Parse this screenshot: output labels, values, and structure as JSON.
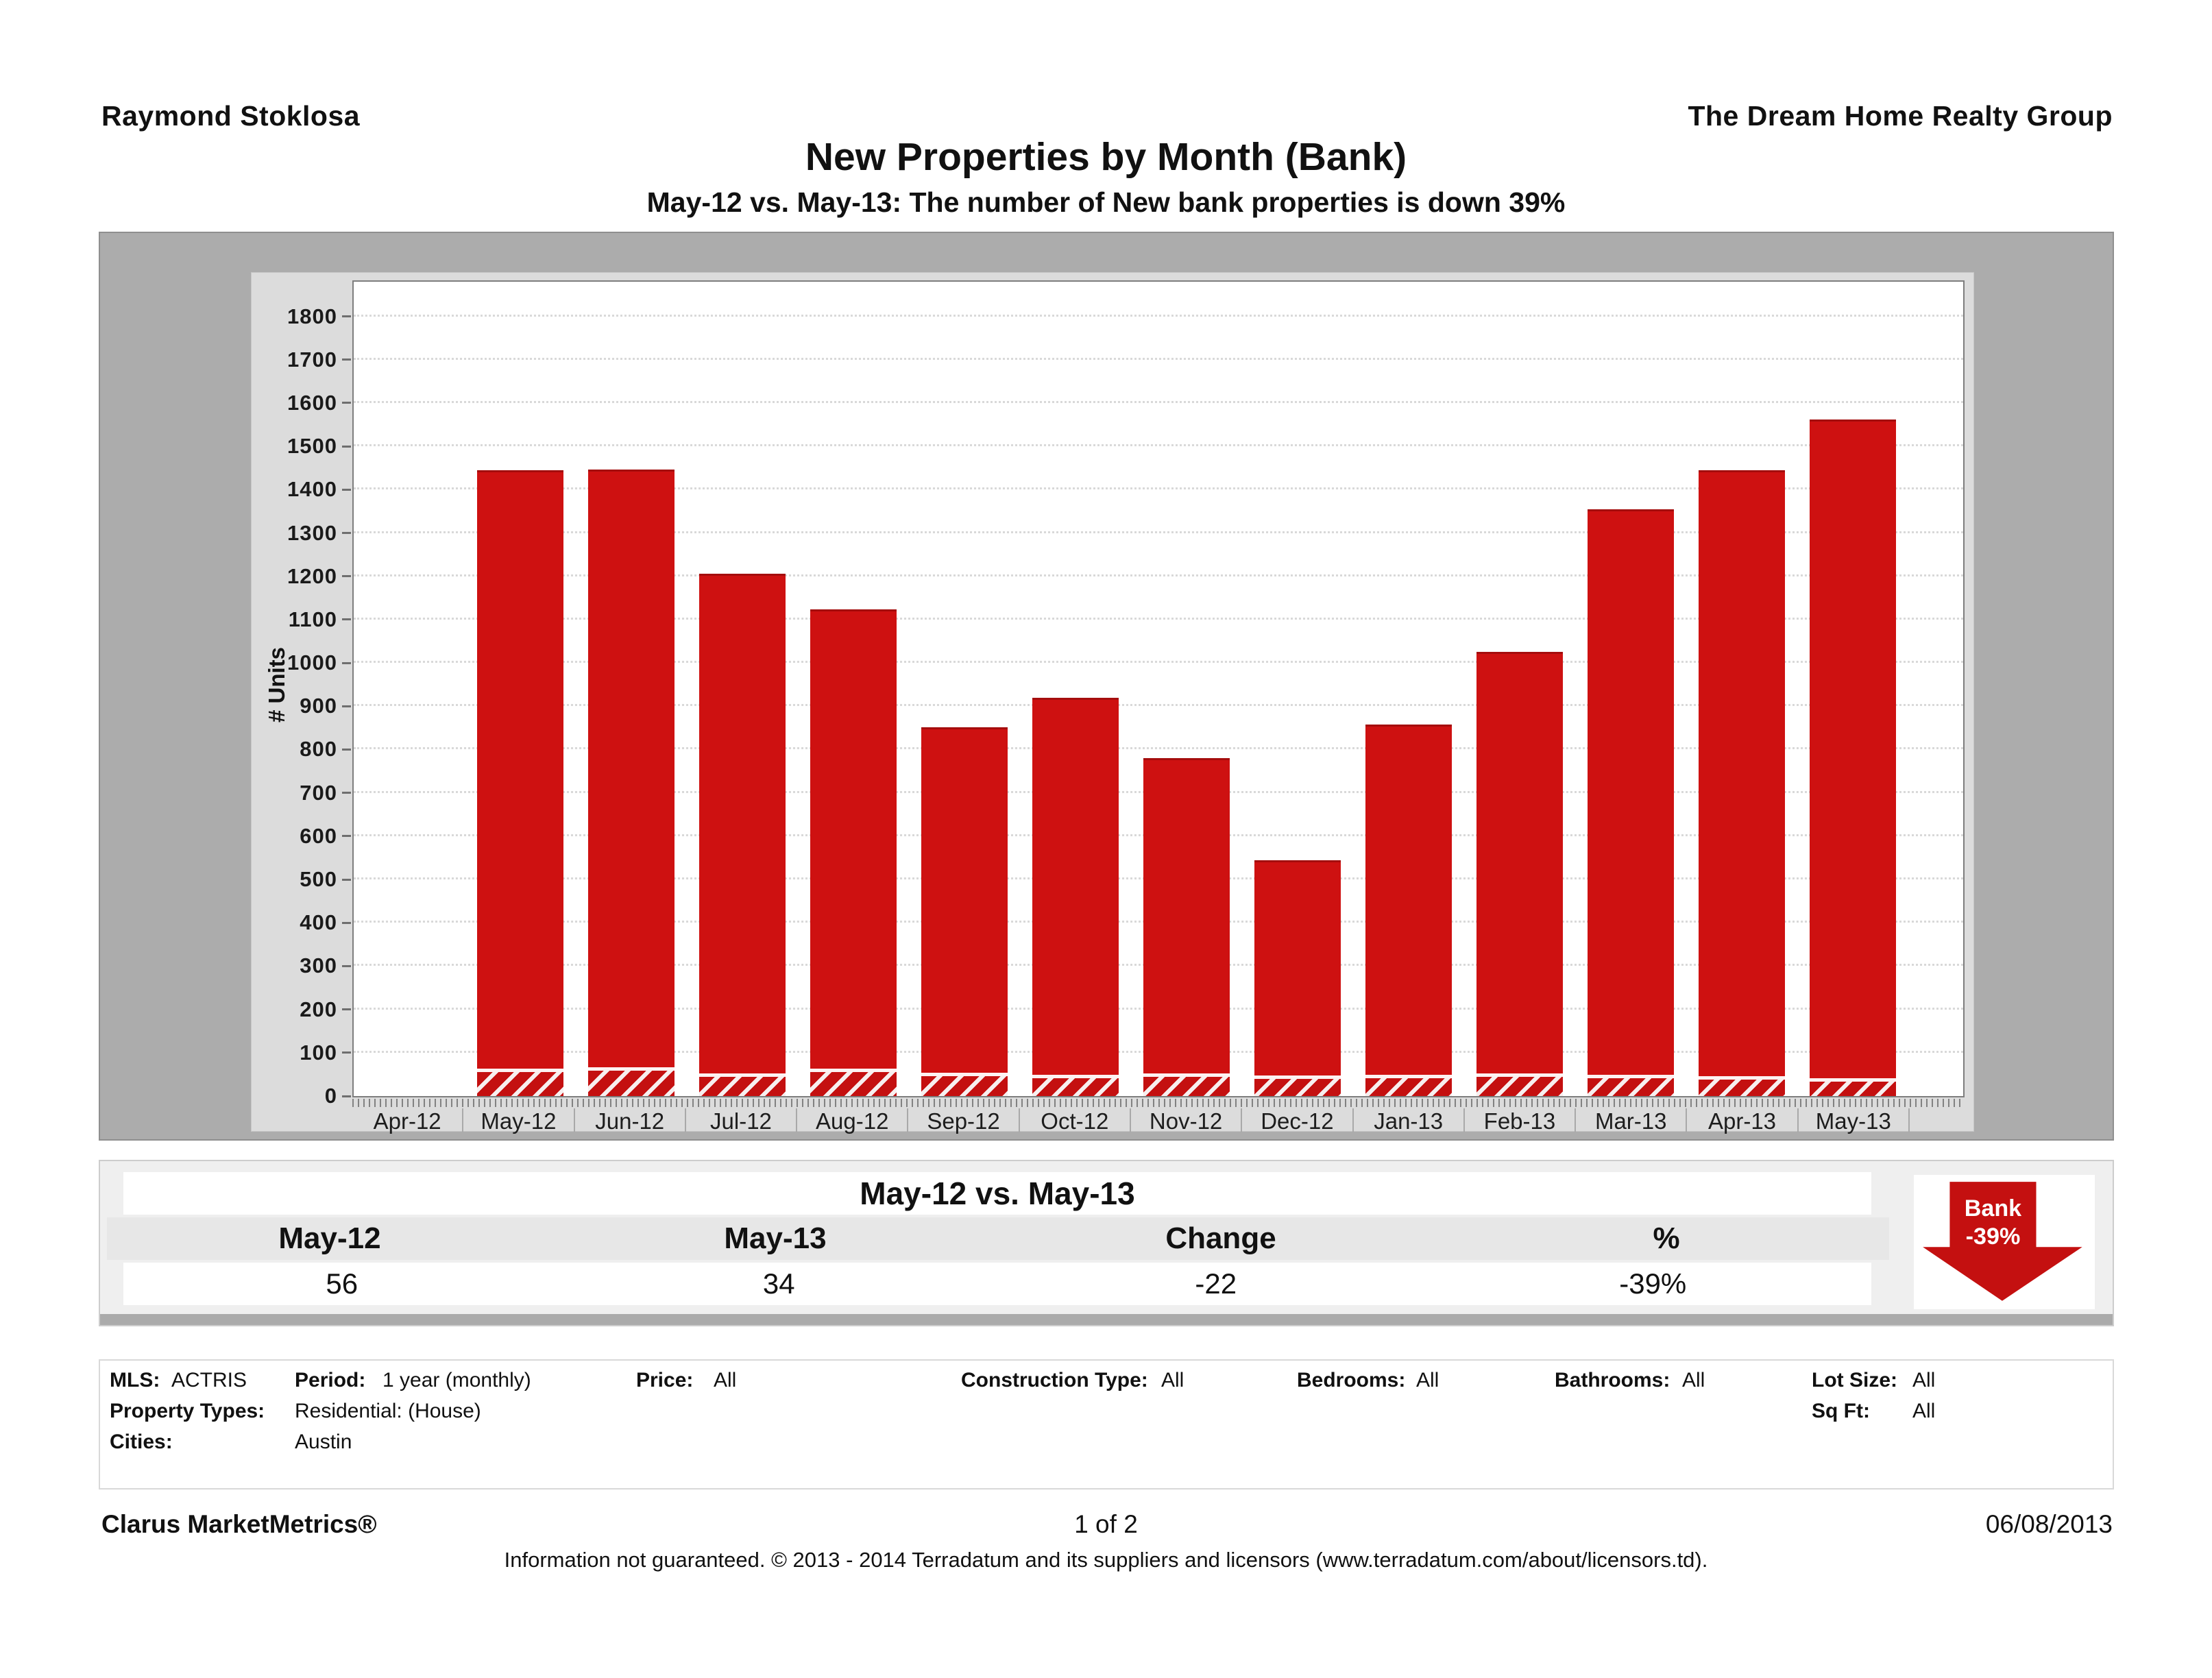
{
  "header": {
    "agent": "Raymond Stoklosa",
    "company": "The Dream Home Realty Group"
  },
  "title": "New Properties by Month (Bank)",
  "subtitle": "May-12 vs. May-13: The number of New bank properties is down 39%",
  "chart_data": {
    "type": "bar",
    "title": "New Properties by Month (Bank)",
    "xlabel": "",
    "ylabel": "# Units",
    "ylim": [
      0,
      1880
    ],
    "ytick_step": 100,
    "ytick_max": 1800,
    "grid": "horizontal-dotted",
    "legend_position": "none",
    "bar_color": "#ce1111",
    "hatch_description": "bottom segment of each bar is red with white diagonal stripes (bank share)",
    "categories": [
      "Apr-12",
      "May-12",
      "Jun-12",
      "Jul-12",
      "Aug-12",
      "Sep-12",
      "Oct-12",
      "Nov-12",
      "Dec-12",
      "Jan-13",
      "Feb-13",
      "Mar-13",
      "Apr-13",
      "May-13"
    ],
    "series": [
      {
        "name": "New properties (total bar height)",
        "values": [
          null,
          1445,
          1447,
          1206,
          1123,
          852,
          920,
          780,
          544,
          858,
          1026,
          1355,
          1445,
          1562
        ]
      },
      {
        "name": "New bank properties (hatched bottom segment)",
        "values": [
          null,
          56,
          58,
          45,
          55,
          46,
          42,
          44,
          40,
          42,
          44,
          42,
          38,
          34
        ]
      }
    ]
  },
  "comparison": {
    "title": "May-12 vs. May-13",
    "columns": [
      "May-12",
      "May-13",
      "Change",
      "%"
    ],
    "values": [
      "56",
      "34",
      "-22",
      "-39%"
    ]
  },
  "badge": {
    "label": "Bank",
    "value": "-39%",
    "color": "#c41010"
  },
  "filters": {
    "mls_label": "MLS:",
    "mls_value": "ACTRIS",
    "period_label": "Period:",
    "period_value": "1 year (monthly)",
    "price_label": "Price:",
    "price_value": "All",
    "construction_label": "Construction Type:",
    "construction_value": "All",
    "bedrooms_label": "Bedrooms:",
    "bedrooms_value": "All",
    "bathrooms_label": "Bathrooms:",
    "bathrooms_value": "All",
    "lot_label": "Lot Size:",
    "lot_value": "All",
    "property_types_label": "Property Types:",
    "property_types_value": "Residential: (House)",
    "sqft_label": "Sq Ft:",
    "sqft_value": "All",
    "cities_label": "Cities:",
    "cities_value": "Austin"
  },
  "footer": {
    "brand": "Clarus MarketMetrics®",
    "page": "1 of 2",
    "date": "06/08/2013",
    "disclaimer": "Information not guaranteed.  © 2013 - 2014 Terradatum and its suppliers and licensors (www.terradatum.com/about/licensors.td)."
  }
}
